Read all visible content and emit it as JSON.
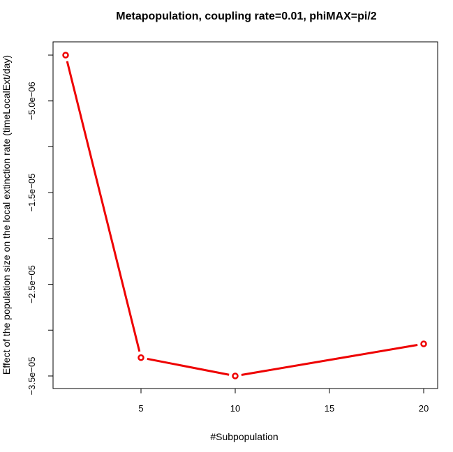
{
  "chart_data": {
    "type": "line",
    "title": "Metapopulation, coupling rate=0.01, phiMAX=pi/2",
    "xlabel": "#Subpopulation",
    "ylabel": "Effect of the population size on the local extinction rate (timeLocalExt/day)",
    "x": [
      1,
      5,
      10,
      20
    ],
    "y": [
      0.0,
      -3.3e-05,
      -3.5e-05,
      -3.15e-05
    ],
    "xlim": [
      1,
      20
    ],
    "ylim": [
      -3.5e-05,
      0.0
    ],
    "xticks": [
      5,
      10,
      15,
      20
    ],
    "xtick_labels": [
      "5",
      "10",
      "15",
      "20"
    ],
    "yticks": [
      -5e-06,
      -1.5e-05,
      -2.5e-05,
      -3.5e-05
    ],
    "ytick_labels": [
      "−5.0e−06",
      "−1.5e−05",
      "−2.5e−05",
      "−3.5e−05"
    ],
    "yticks_minor": [
      0.0,
      -1e-05,
      -2e-05,
      -3e-05
    ],
    "series_color": "#ee0000",
    "markers": "open-circle",
    "grid": false
  }
}
